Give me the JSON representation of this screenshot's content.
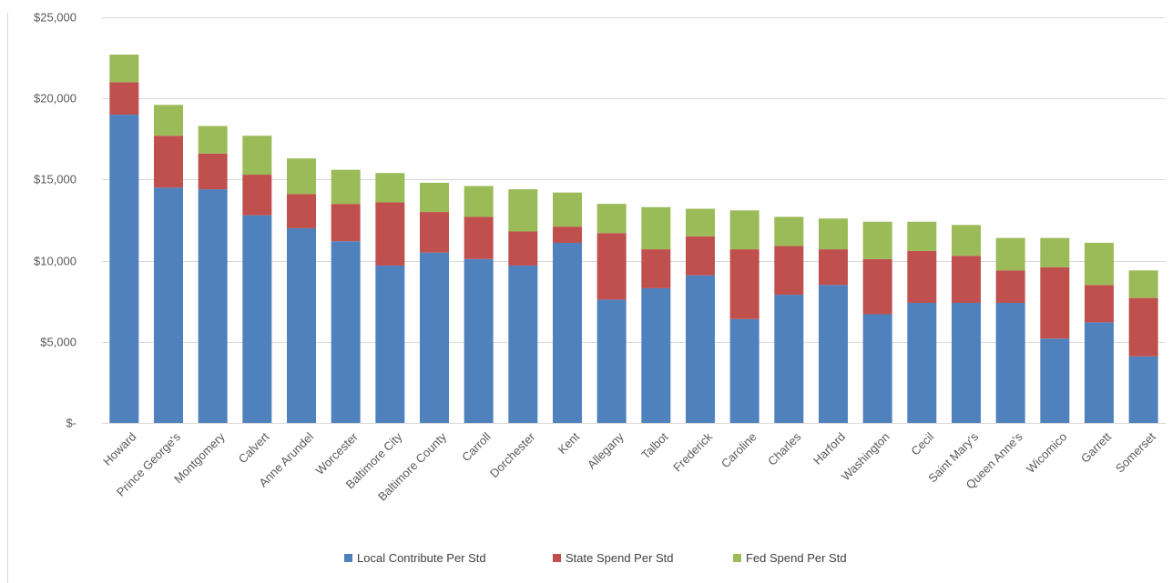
{
  "chart_data": {
    "type": "bar",
    "stacked": true,
    "title": "",
    "xlabel": "",
    "ylabel": "",
    "ylim": [
      0,
      25000
    ],
    "y_ticks": [
      0,
      5000,
      10000,
      15000,
      20000,
      25000
    ],
    "y_tick_labels": [
      "$-",
      "$5,000",
      "$10,000",
      "$15,000",
      "$20,000",
      "$25,000"
    ],
    "grid": true,
    "legend_position": "bottom",
    "categories": [
      "Howard",
      "Prince George's",
      "Montgomery",
      "Calvert",
      "Anne Arundel",
      "Worcester",
      "Baltimore City",
      "Baltimore County",
      "Carroll",
      "Dorchester",
      "Kent",
      "Allegany",
      "Talbot",
      "Frederick",
      "Caroline",
      "Charles",
      "Harford",
      "Washington",
      "Cecil",
      "Saint Mary's",
      "Queen Anne's",
      "Wicomico",
      "Garrett",
      "Somerset"
    ],
    "series": [
      {
        "name": "Local Contribute Per Std",
        "color": "#4f81bd",
        "values": [
          19000,
          14500,
          14400,
          12800,
          12000,
          11200,
          9700,
          10500,
          10100,
          9700,
          11100,
          7600,
          8300,
          9100,
          6400,
          7900,
          8500,
          6700,
          7400,
          7400,
          7400,
          5200,
          6200,
          4100
        ]
      },
      {
        "name": "State Spend Per Std",
        "color": "#c0504d",
        "values": [
          2000,
          3200,
          2200,
          2500,
          2100,
          2300,
          3900,
          2500,
          2600,
          2100,
          1000,
          4100,
          2400,
          2400,
          4300,
          3000,
          2200,
          3400,
          3200,
          2900,
          2000,
          4400,
          2300,
          3600
        ]
      },
      {
        "name": "Fed Spend Per Std",
        "color": "#9bbb59",
        "values": [
          1700,
          1900,
          1700,
          2400,
          2200,
          2100,
          1800,
          1800,
          1900,
          2600,
          2100,
          1800,
          2600,
          1700,
          2400,
          1800,
          1900,
          2300,
          1800,
          1900,
          2000,
          1800,
          2600,
          1700
        ]
      }
    ]
  }
}
